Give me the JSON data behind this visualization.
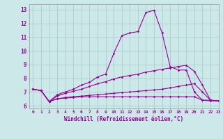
{
  "x": [
    0,
    1,
    2,
    3,
    4,
    5,
    6,
    7,
    8,
    9,
    10,
    11,
    12,
    13,
    14,
    15,
    16,
    17,
    18,
    19,
    20,
    21,
    22,
    23
  ],
  "line1": [
    7.2,
    7.1,
    6.3,
    6.8,
    7.0,
    7.2,
    7.5,
    7.7,
    8.1,
    8.3,
    9.8,
    11.1,
    11.3,
    11.4,
    12.8,
    12.95,
    11.3,
    8.85,
    8.6,
    8.6,
    7.0,
    6.4,
    6.4,
    6.35
  ],
  "line2": [
    7.2,
    7.1,
    6.3,
    6.7,
    6.9,
    7.05,
    7.2,
    7.4,
    7.6,
    7.75,
    7.95,
    8.1,
    8.2,
    8.3,
    8.45,
    8.55,
    8.65,
    8.75,
    8.85,
    8.95,
    8.5,
    7.5,
    6.4,
    6.35
  ],
  "line3": [
    7.2,
    7.1,
    6.3,
    6.5,
    6.55,
    6.6,
    6.65,
    6.65,
    6.65,
    6.65,
    6.65,
    6.65,
    6.65,
    6.65,
    6.65,
    6.65,
    6.65,
    6.65,
    6.65,
    6.65,
    6.65,
    6.4,
    6.35,
    6.35
  ],
  "line4": [
    7.2,
    7.1,
    6.3,
    6.5,
    6.6,
    6.65,
    6.7,
    6.75,
    6.8,
    6.85,
    6.9,
    6.95,
    7.0,
    7.05,
    7.1,
    7.15,
    7.2,
    7.3,
    7.4,
    7.5,
    7.6,
    7.0,
    6.4,
    6.35
  ],
  "line_color": "#990099",
  "bg_color": "#cce8e8",
  "grid_color": "#aacccc",
  "xlabel": "Windchill (Refroidissement éolien,°C)",
  "ylim": [
    5.8,
    13.4
  ],
  "xlim": [
    -0.5,
    23
  ],
  "yticks": [
    6,
    7,
    8,
    9,
    10,
    11,
    12,
    13
  ],
  "xticks": [
    0,
    1,
    2,
    3,
    4,
    5,
    6,
    7,
    8,
    9,
    10,
    11,
    12,
    13,
    14,
    15,
    16,
    17,
    18,
    19,
    20,
    21,
    22,
    23
  ]
}
